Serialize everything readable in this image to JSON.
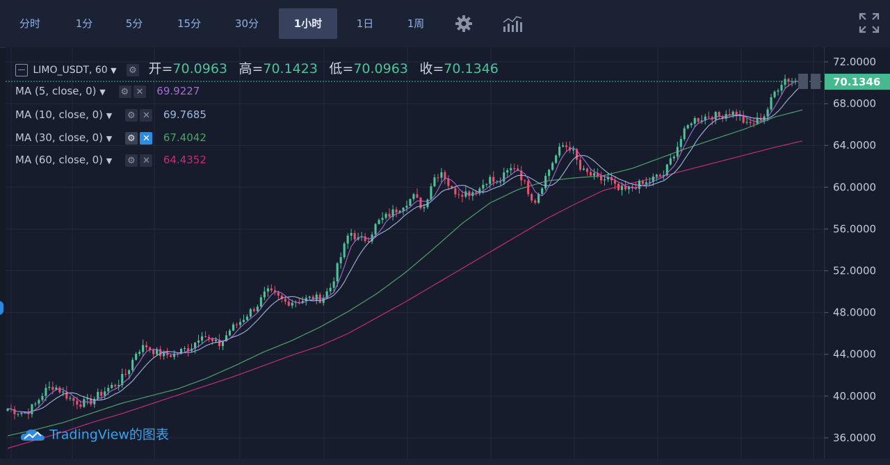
{
  "toolbar": {
    "timeframes": [
      "分时",
      "1分",
      "5分",
      "15分",
      "30分",
      "1小时",
      "1日",
      "1周"
    ],
    "active_timeframe": "1小时",
    "icons": [
      "gear-icon",
      "indicators-icon",
      "fullscreen-icon"
    ]
  },
  "symbol_legend": {
    "symbol": "LIMO_USDT, 60",
    "open_label": "开=",
    "open": "70.0963",
    "high_label": "高=",
    "high": "70.1423",
    "low_label": "低=",
    "low": "70.0963",
    "close_label": "收=",
    "close": "70.1346"
  },
  "ma_legend": [
    {
      "label": "MA (5, close, 0)",
      "value": "69.9227",
      "color": "#a86ad6"
    },
    {
      "label": "MA (10, close, 0)",
      "value": "69.7685",
      "color": "#9fb7e0"
    },
    {
      "label": "MA (30, close, 0)",
      "value": "67.4042",
      "color": "#4fa16a"
    },
    {
      "label": "MA (60, close, 0)",
      "value": "64.4352",
      "color": "#c22d7a"
    }
  ],
  "watermark": "TradingView的图表",
  "price_label": "70.1346",
  "colors": {
    "up": "#4fc29a",
    "down": "#e8506b",
    "background": "#161c2b",
    "grid": "#222a3c",
    "active_tab": "#38425e",
    "last_price": "#46b98e"
  },
  "chart_data": {
    "type": "candlestick",
    "symbol": "LIMO_USDT",
    "interval": "60",
    "ylim": [
      34.0,
      73.4
    ],
    "yticks": [
      "72.0000",
      "68.0000",
      "64.0000",
      "60.0000",
      "56.0000",
      "52.0000",
      "48.0000",
      "44.0000",
      "40.0000",
      "36.0000"
    ],
    "last_price": 70.1346,
    "close_path": [
      38.8,
      38.5,
      38.4,
      39.2,
      40.5,
      41.0,
      40.3,
      39.6,
      39.3,
      39.5,
      40.2,
      40.8,
      41.3,
      42.4,
      44.4,
      44.8,
      44.2,
      43.9,
      44.0,
      44.4,
      44.8,
      46.1,
      45.2,
      44.9,
      46.3,
      47.0,
      47.9,
      48.7,
      50.0,
      49.6,
      49.0,
      49.1,
      49.2,
      49.4,
      49.3,
      50.5,
      53.2,
      55.8,
      54.9,
      55.1,
      56.6,
      57.2,
      57.8,
      58.5,
      59.1,
      57.9,
      60.8,
      61.6,
      59.7,
      59.5,
      59.5,
      59.8,
      60.9,
      60.3,
      61.4,
      62.1,
      60.2,
      58.6,
      60.6,
      62.5,
      64.0,
      63.8,
      61.6,
      61.2,
      60.7,
      60.8,
      59.7,
      59.7,
      60.2,
      60.3,
      60.9,
      61.2,
      63.1,
      64.9,
      66.4,
      66.6,
      66.9,
      66.8,
      67.2,
      67.0,
      65.9,
      66.3,
      67.0,
      69.1,
      70.4,
      70.2,
      70.1346
    ],
    "ma_series": [
      {
        "name": "MA (5, close, 0)",
        "period": 5,
        "last": 69.9227
      },
      {
        "name": "MA (10, close, 0)",
        "period": 10,
        "last": 69.7685
      },
      {
        "name": "MA (30, close, 0)",
        "period": 30,
        "last": 67.4042
      },
      {
        "name": "MA (60, close, 0)",
        "period": 60,
        "last": 64.4352
      }
    ],
    "ma_30_path": [
      36.2,
      36.8,
      37.5,
      38.4,
      39.3,
      40.0,
      40.7,
      41.7,
      42.9,
      44.2,
      45.3,
      46.6,
      48.1,
      49.8,
      51.8,
      54.1,
      56.5,
      58.5,
      59.8,
      60.6,
      60.9,
      61.1,
      61.8,
      62.8,
      63.8,
      64.7,
      65.6,
      66.7,
      67.4042
    ],
    "ma_60_path": [
      35.0,
      35.8,
      36.6,
      37.5,
      38.3,
      39.2,
      40.1,
      41.0,
      41.9,
      42.9,
      43.9,
      44.8,
      46.0,
      47.5,
      49.0,
      50.6,
      52.2,
      53.8,
      55.4,
      57.0,
      58.4,
      59.7,
      60.4,
      61.0,
      61.7,
      62.4,
      63.1,
      63.8,
      64.4352
    ],
    "grid": true
  }
}
